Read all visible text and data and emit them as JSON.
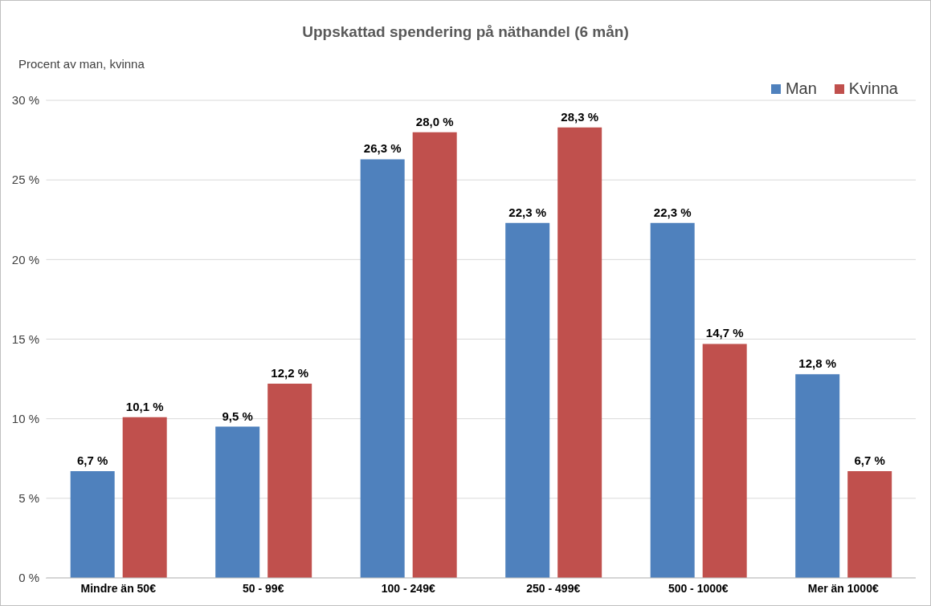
{
  "chart_data": {
    "type": "bar",
    "title": "Uppskattad spendering på näthandel (6 mån)",
    "ylabel": "Procent av man, kvinna",
    "categories": [
      "Mindre än 50€",
      "50 - 99€",
      "100 - 249€",
      "250 - 499€",
      "500 - 1000€",
      "Mer än 1000€"
    ],
    "series": [
      {
        "name": "Man",
        "color": "#4f81bd",
        "values": [
          6.7,
          9.5,
          26.3,
          22.3,
          22.3,
          12.8
        ],
        "value_labels": [
          "6,7 %",
          "9,5 %",
          "26,3 %",
          "22,3 %",
          "22,3 %",
          "12,8 %"
        ]
      },
      {
        "name": "Kvinna",
        "color": "#c0504d",
        "values": [
          10.1,
          12.2,
          28.0,
          28.3,
          14.7,
          6.7
        ],
        "value_labels": [
          "10,1 %",
          "12,2 %",
          "28,0 %",
          "28,3 %",
          "14,7 %",
          "6,7 %"
        ]
      }
    ],
    "ylim": [
      0,
      30
    ],
    "yticks": [
      {
        "value": 0,
        "label": "0 %"
      },
      {
        "value": 5,
        "label": "5 %"
      },
      {
        "value": 10,
        "label": "10 %"
      },
      {
        "value": 15,
        "label": "15 %"
      },
      {
        "value": 20,
        "label": "20 %"
      },
      {
        "value": 25,
        "label": "25 %"
      },
      {
        "value": 30,
        "label": "30 %"
      }
    ],
    "grid": "y",
    "legend": "top right"
  }
}
